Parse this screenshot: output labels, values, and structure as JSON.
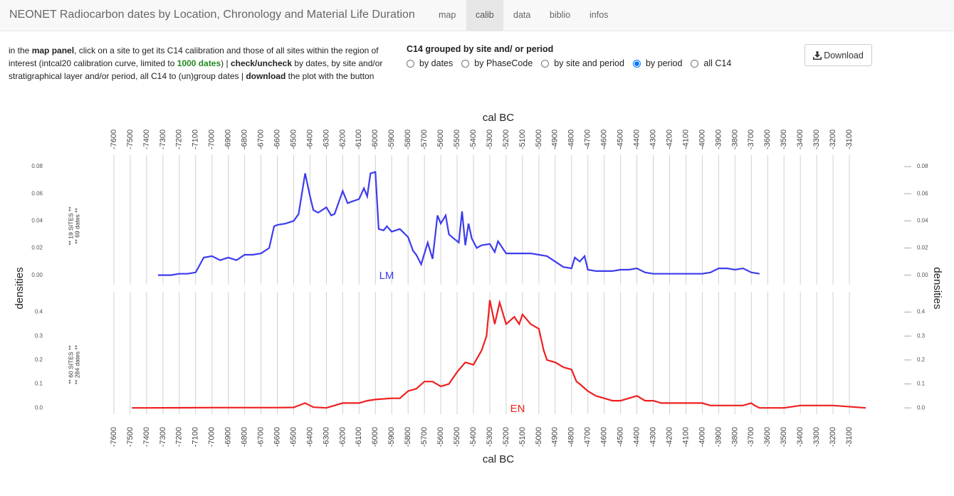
{
  "nav": {
    "title": "NEONET Radiocarbon dates by Location, Chronology and Material Life Duration",
    "tabs": [
      "map",
      "calib",
      "data",
      "biblio",
      "infos"
    ],
    "active": 1
  },
  "instructions": [
    "in the ",
    "map panel",
    ", click on a site to get its C14 calibration and those of all sites within the region of interest (intcal20 calibration curve, limited to ",
    "1000 dates",
    ") | ",
    "check/uncheck",
    " by dates, by site and/or stratigraphical layer and/or period, all C14 to (un)group dates | ",
    "download",
    " the plot with the button"
  ],
  "grouping": {
    "label": "C14 grouped by site and/ or period",
    "options": [
      "by dates",
      "by PhaseCode",
      "by site and period",
      "by period",
      "all C14"
    ],
    "selected": 3
  },
  "download_button": "Download",
  "chart_data": [
    {
      "type": "line",
      "xlabel": "cal BC",
      "ylabel": "densities",
      "annotations": [
        "** 19 SITES **",
        "** 69 dates **"
      ],
      "xlim": [
        -7650,
        -3000
      ],
      "xticks": [
        -7600,
        -7500,
        -7400,
        -7300,
        -7200,
        -7100,
        -7000,
        -6900,
        -6800,
        -6700,
        -6600,
        -6500,
        -6400,
        -6300,
        -6200,
        -6100,
        -6000,
        -5900,
        -5800,
        -5700,
        -5600,
        -5500,
        -5400,
        -5300,
        -5200,
        -5100,
        -5000,
        -4900,
        -4800,
        -4700,
        -4600,
        -4500,
        -4400,
        -4300,
        -4200,
        -4100,
        -4000,
        -3900,
        -3800,
        -3700,
        -3600,
        -3500,
        -3400,
        -3300,
        -3200,
        -3100
      ],
      "ylim": [
        -0.007,
        0.09
      ],
      "yticks": [
        {
          "value": 0,
          "label": "0.00"
        },
        0.02,
        0.04,
        0.06,
        0.08
      ],
      "grid": true,
      "x": [
        -7330,
        -7300,
        -7250,
        -7200,
        -7150,
        -7100,
        -7050,
        -7000,
        -6950,
        -6900,
        -6850,
        -6800,
        -6750,
        -6700,
        -6650,
        -6620,
        -6600,
        -6550,
        -6500,
        -6470,
        -6430,
        -6400,
        -6380,
        -6350,
        -6300,
        -6270,
        -6250,
        -6200,
        -6170,
        -6150,
        -6100,
        -6070,
        -6050,
        -6030,
        -6000,
        -5980,
        -5950,
        -5930,
        -5900,
        -5850,
        -5800,
        -5770,
        -5750,
        -5720,
        -5700,
        -5680,
        -5650,
        -5620,
        -5600,
        -5570,
        -5550,
        -5520,
        -5490,
        -5470,
        -5450,
        -5430,
        -5410,
        -5380,
        -5350,
        -5300,
        -5270,
        -5250,
        -5200,
        -5150,
        -5100,
        -5050,
        -5000,
        -4950,
        -4900,
        -4850,
        -4800,
        -4780,
        -4750,
        -4720,
        -4700,
        -4650,
        -4600,
        -4550,
        -4500,
        -4450,
        -4400,
        -4350,
        -4300,
        -4200,
        -4100,
        -4000,
        -3950,
        -3900,
        -3850,
        -3800,
        -3750,
        -3700,
        -3650
      ],
      "series": [
        {
          "name": "LM",
          "color": "#3c3cee",
          "values": [
            0,
            0,
            0,
            0.001,
            0.001,
            0.002,
            0.013,
            0.014,
            0.011,
            0.013,
            0.011,
            0.015,
            0.015,
            0.016,
            0.02,
            0.036,
            0.037,
            0.038,
            0.04,
            0.045,
            0.075,
            0.058,
            0.048,
            0.046,
            0.05,
            0.044,
            0.045,
            0.062,
            0.053,
            0.054,
            0.056,
            0.064,
            0.058,
            0.075,
            0.076,
            0.034,
            0.033,
            0.036,
            0.032,
            0.034,
            0.028,
            0.018,
            0.015,
            0.008,
            0.016,
            0.024,
            0.012,
            0.044,
            0.038,
            0.044,
            0.03,
            0.027,
            0.024,
            0.047,
            0.022,
            0.038,
            0.027,
            0.02,
            0.022,
            0.023,
            0.017,
            0.025,
            0.016,
            0.016,
            0.016,
            0.016,
            0.015,
            0.014,
            0.01,
            0.006,
            0.005,
            0.013,
            0.01,
            0.014,
            0.004,
            0.003,
            0.003,
            0.003,
            0.004,
            0.004,
            0.005,
            0.002,
            0.001,
            0.001,
            0.001,
            0.001,
            0.002,
            0.005,
            0.005,
            0.004,
            0.005,
            0.002,
            0.001
          ]
        }
      ]
    },
    {
      "type": "line",
      "xlabel": "cal BC",
      "ylabel": "densities",
      "annotations": [
        "** 60 SITES **",
        "** 284 dates **"
      ],
      "xlim": [
        -7650,
        -3000
      ],
      "xticks": [
        -7600,
        -7500,
        -7400,
        -7300,
        -7200,
        -7100,
        -7000,
        -6900,
        -6800,
        -6700,
        -6600,
        -6500,
        -6400,
        -6300,
        -6200,
        -6100,
        -6000,
        -5900,
        -5800,
        -5700,
        -5600,
        -5500,
        -5400,
        -5300,
        -5200,
        -5100,
        -5000,
        -4900,
        -4800,
        -4700,
        -4600,
        -4500,
        -4400,
        -4300,
        -4200,
        -4100,
        -4000,
        -3900,
        -3800,
        -3700,
        -3600,
        -3500,
        -3400,
        -3300,
        -3200,
        -3100
      ],
      "ylim": [
        -0.05,
        0.47
      ],
      "yticks": [
        {
          "value": 0,
          "label": "0.0"
        },
        0.1,
        0.2,
        0.3,
        0.4
      ],
      "grid": true,
      "x": [
        -7490,
        -7400,
        -7000,
        -6600,
        -6500,
        -6430,
        -6380,
        -6300,
        -6200,
        -6100,
        -6050,
        -6000,
        -5900,
        -5850,
        -5800,
        -5750,
        -5700,
        -5650,
        -5600,
        -5550,
        -5500,
        -5450,
        -5400,
        -5350,
        -5320,
        -5300,
        -5270,
        -5240,
        -5200,
        -5150,
        -5120,
        -5100,
        -5050,
        -5000,
        -4970,
        -4950,
        -4900,
        -4850,
        -4800,
        -4770,
        -4750,
        -4700,
        -4650,
        -4600,
        -4550,
        -4500,
        -4450,
        -4400,
        -4350,
        -4300,
        -4250,
        -4200,
        -4150,
        -4100,
        -4050,
        -4000,
        -3950,
        -3900,
        -3800,
        -3750,
        -3700,
        -3680,
        -3650,
        -3600,
        -3500,
        -3400,
        -3300,
        -3200,
        -3000
      ],
      "series": [
        {
          "name": "EN",
          "color": "#ee2020",
          "values": [
            0,
            0,
            0.001,
            0.001,
            0.002,
            0.02,
            0.003,
            0,
            0.02,
            0.02,
            0.03,
            0.035,
            0.04,
            0.04,
            0.07,
            0.08,
            0.11,
            0.11,
            0.09,
            0.1,
            0.15,
            0.19,
            0.18,
            0.24,
            0.3,
            0.45,
            0.35,
            0.44,
            0.35,
            0.38,
            0.35,
            0.39,
            0.35,
            0.33,
            0.24,
            0.2,
            0.19,
            0.17,
            0.16,
            0.11,
            0.1,
            0.07,
            0.05,
            0.04,
            0.03,
            0.03,
            0.04,
            0.05,
            0.03,
            0.03,
            0.02,
            0.02,
            0.02,
            0.02,
            0.02,
            0.02,
            0.01,
            0.01,
            0.01,
            0.01,
            0.02,
            0.01,
            0,
            0,
            0,
            0.01,
            0.01,
            0.01,
            0
          ]
        }
      ]
    }
  ]
}
